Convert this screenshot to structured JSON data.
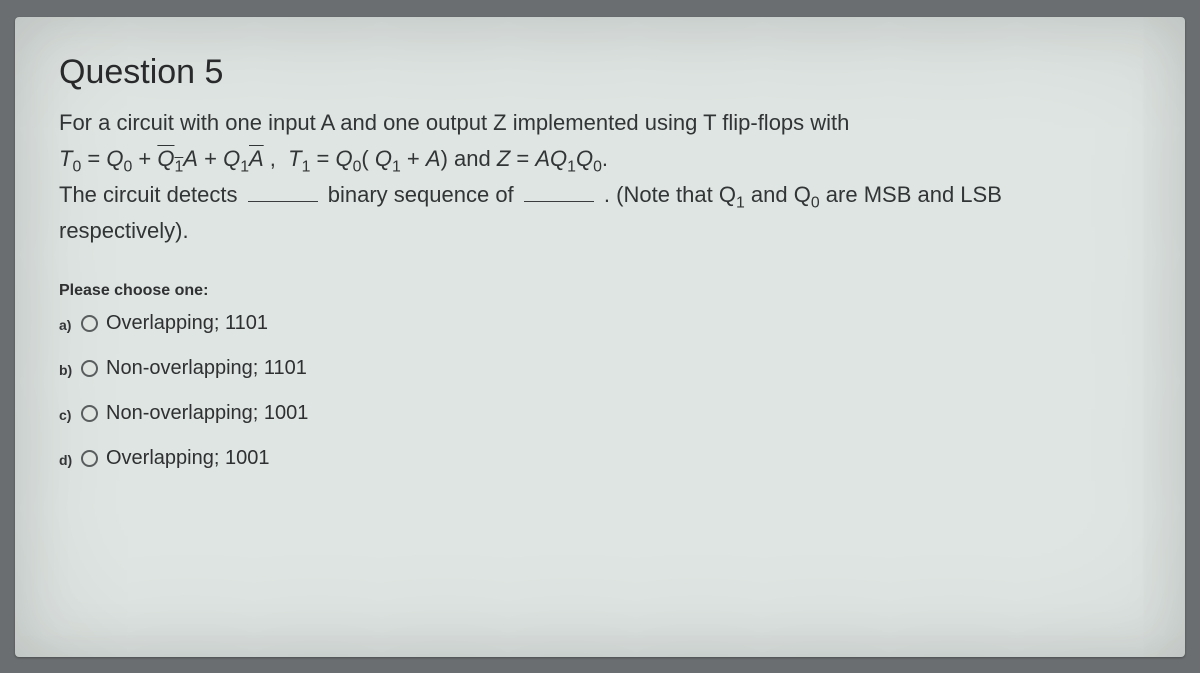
{
  "question": {
    "title": "Question 5",
    "line1": "For a circuit with one input A and one output Z implemented using T flip-flops with",
    "line3_pre": "The circuit detects",
    "line3_mid": "binary sequence of",
    "line3_post_a": ". (Note that Q",
    "line3_post_b": " and Q",
    "line3_post_c": " are MSB and LSB",
    "line4": "respectively).",
    "q1_sub": "1",
    "q0_sub": "0",
    "prompt": "Please choose one:",
    "options": [
      {
        "letter": "a)",
        "text": "Overlapping; 1101"
      },
      {
        "letter": "b)",
        "text": "Non-overlapping; 1101"
      },
      {
        "letter": "c)",
        "text": "Non-overlapping; 1001"
      },
      {
        "letter": "d)",
        "text": "Overlapping; 1001"
      }
    ]
  },
  "style": {
    "panel_bg": "#dfe5e2",
    "outer_bg": "#6a6e70",
    "text_color": "#2d2f30",
    "title_fontsize": 34,
    "body_fontsize": 22,
    "prompt_fontsize": 16,
    "option_fontsize": 20,
    "radio_border": "#5a5e5f",
    "blank_underline": "#3a3c3d",
    "font_family": "Arial"
  },
  "formula": {
    "type": "equation",
    "text": "T0 = Q0 + Q1_bar A + Q1 A_bar ,  T1 = Q0( Q1 + A)  and  Z = A Q1 Q0.",
    "italic": true
  }
}
